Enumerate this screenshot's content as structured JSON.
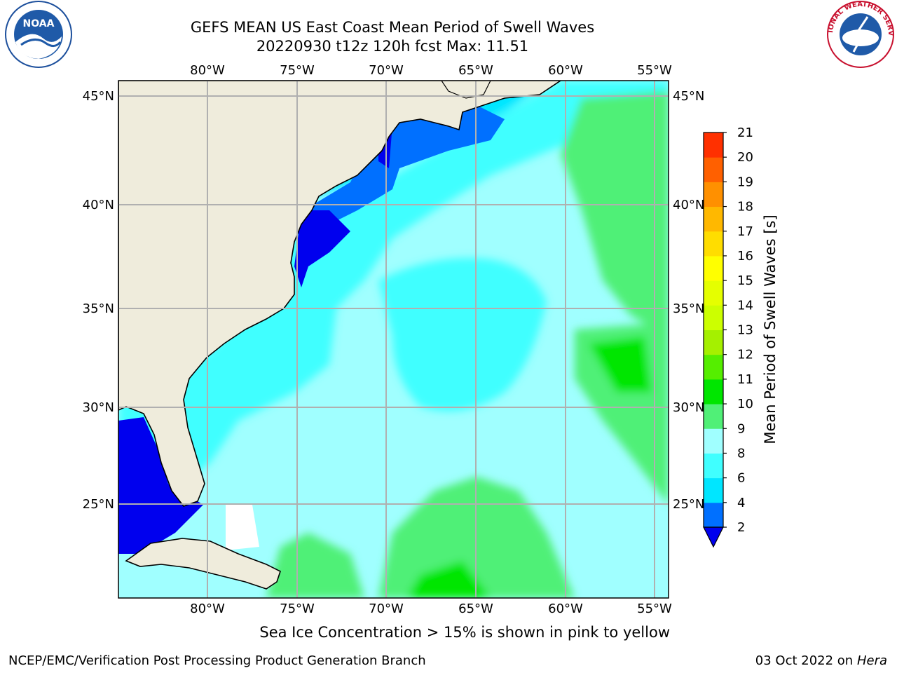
{
  "header": {
    "title_line1": "GEFS MEAN US East Coast Mean Period of Swell Waves",
    "title_line2": "20220930 t12z 120h fcst   Max: 11.51"
  },
  "logos": {
    "left": "NOAA",
    "right": "NATIONAL WEATHER SERVICE"
  },
  "map": {
    "lon_labels": [
      "80°W",
      "75°W",
      "70°W",
      "65°W",
      "60°W",
      "55°W"
    ],
    "lat_labels": [
      "45°N",
      "40°N",
      "35°N",
      "30°N",
      "25°N"
    ],
    "lon_values": [
      -80,
      -75,
      -70,
      -65,
      -60,
      -55
    ],
    "lat_values": [
      45,
      40,
      35,
      30,
      25
    ],
    "extent": {
      "lon_min": -85,
      "lon_max": -54.3,
      "lat_min": 20.5,
      "lat_max": 45.8
    },
    "colors": {
      "land": "#efecdc",
      "grid": "#b0b0b0",
      "coast": "#000000"
    }
  },
  "colorbar": {
    "label": "Mean Period of Swell Waves [s]",
    "ticks": [
      "2",
      "4",
      "6",
      "8",
      "9",
      "10",
      "11",
      "12",
      "13",
      "14",
      "15",
      "16",
      "17",
      "18",
      "19",
      "20",
      "21"
    ],
    "colors": [
      "#0070ff",
      "#00e6ff",
      "#40ffff",
      "#a0ffff",
      "#50f077",
      "#00e600",
      "#55ee00",
      "#a5f000",
      "#ccff00",
      "#e5ff00",
      "#ffff00",
      "#ffdd00",
      "#ffb800",
      "#ff9000",
      "#ff6000",
      "#ff3000"
    ],
    "under_color": "#0000ee"
  },
  "chart_data": {
    "type": "heatmap",
    "title": "GEFS MEAN US East Coast Mean Period of Swell Waves",
    "subtitle": "20220930 t12z 120h fcst   Max: 11.51",
    "units": "s",
    "max": 11.51,
    "x_range": [
      -85,
      -54.3
    ],
    "y_range": [
      20.5,
      45.8
    ],
    "levels": [
      2,
      4,
      6,
      8,
      9,
      10,
      11,
      12,
      13,
      14,
      15,
      16,
      17,
      18,
      19,
      20,
      21
    ]
  },
  "footer": {
    "note": "Sea Ice Concentration > 15% is shown in pink to yellow",
    "credit": "NCEP/EMC/Verification Post Processing Product Generation Branch",
    "date": "03 Oct 2022 on ",
    "machine": "Hera"
  }
}
